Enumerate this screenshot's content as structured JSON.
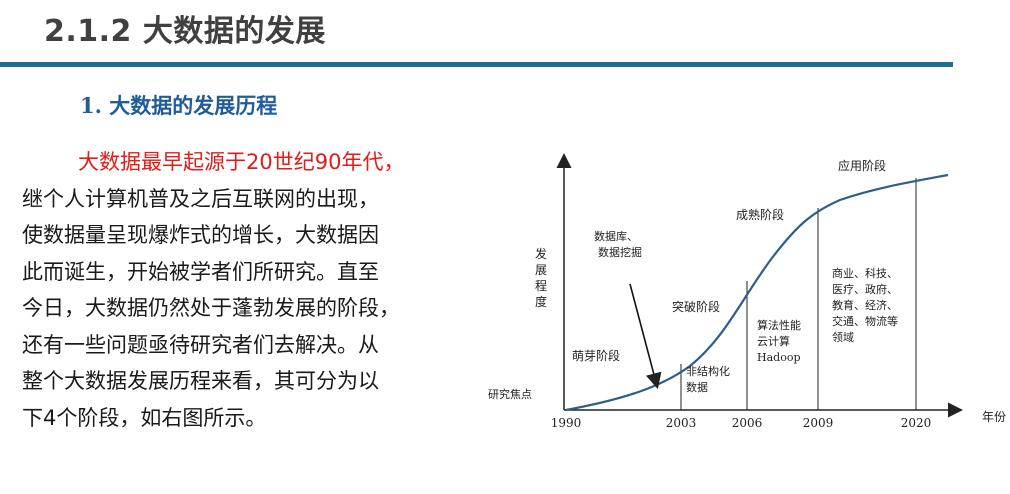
{
  "header": {
    "title": "2.1.2 大数据的发展"
  },
  "section": {
    "number": "1.",
    "heading": "大数据的发展历程"
  },
  "body": {
    "lines": [
      "大数据最早起源于20世纪90年代，",
      "继个人计算机普及之后互联网的出现，",
      "使数据量呈现爆炸式的增长，大数据因",
      "此而诞生，开始被学者们所研究。直至",
      "今日，大数据仍然处于蓬勃发展的阶段，",
      "还有一些问题亟待研究者们去解决。从",
      "整个大数据发展历程来看，其可分为以",
      "下4个阶段，如右图所示。"
    ]
  },
  "chart_data": {
    "type": "line",
    "x_axis_label": "年份",
    "y_axis_label": [
      "发",
      "展",
      "程",
      "度"
    ],
    "x_ticks": [
      "1990",
      "2003",
      "2006",
      "2009",
      "2020"
    ],
    "origin_label": "研究焦点",
    "stages": [
      {
        "name": "萌芽阶段",
        "note": [
          "数据库、",
          "数据挖掘"
        ]
      },
      {
        "name": "突破阶段",
        "note": [
          "非结构化",
          "数据"
        ]
      },
      {
        "name": "成熟阶段",
        "note": [
          "算法性能",
          "云计算",
          "Hadoop"
        ]
      },
      {
        "name": "应用阶段",
        "note": [
          "商业、科技、",
          "医疗、政府、",
          "教育、经济、",
          "交通、物流等",
          "领域"
        ]
      }
    ]
  },
  "colors": {
    "title_rule": "#1e6e8f",
    "heading": "#1f5c99",
    "highlight": "#e41b17",
    "curve": "#2e5f8a"
  }
}
